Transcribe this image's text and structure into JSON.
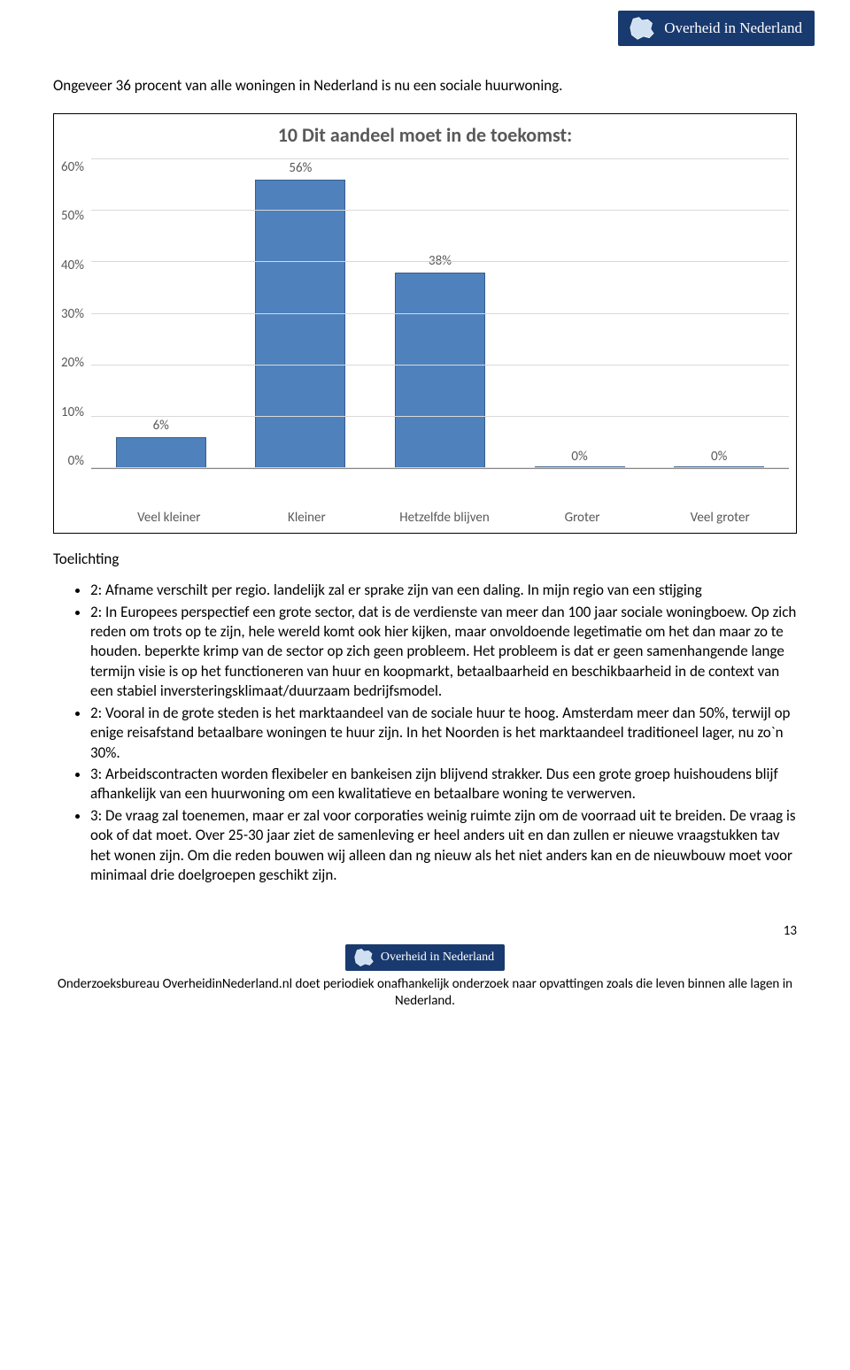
{
  "banner_text": "Overheid in Nederland",
  "intro_text": "Ongeveer 36 procent van alle woningen in Nederland is nu een sociale huurwoning.",
  "chart": {
    "title": "10 Dit aandeel moet in de toekomst:",
    "bar_color": "#4f81bd",
    "bar_border": "#385d8a",
    "grid_color": "#d9d9d9",
    "title_color": "#595959",
    "label_color": "#595959",
    "ymax": 60,
    "ystep": 10,
    "yticks": [
      "60%",
      "50%",
      "40%",
      "30%",
      "20%",
      "10%",
      "0%"
    ],
    "categories": [
      "Veel kleiner",
      "Kleiner",
      "Hetzelfde blijven",
      "Groter",
      "Veel groter"
    ],
    "values": [
      6,
      56,
      38,
      0,
      0
    ],
    "value_labels": [
      "6%",
      "56%",
      "38%",
      "0%",
      "0%"
    ]
  },
  "toelichting_heading": "Toelichting",
  "bullets": [
    "2: Afname verschilt per regio. landelijk zal er sprake zijn van een daling. In mijn regio van een stijging",
    "2: In Europees perspectief een grote sector, dat is de verdienste van meer dan 100 jaar sociale woningboew. Op zich reden om trots op te zijn, hele wereld komt ook hier kijken, maar onvoldoende legetimatie om het dan maar zo te houden. beperkte krimp van de sector op zich geen probleem. Het probleem is dat er geen samenhangende lange termijn visie is op het functioneren van huur en koopmarkt, betaalbaarheid en beschikbaarheid in de context van een stabiel inversteringsklimaat/duurzaam bedrijfsmodel.",
    "2: Vooral in de grote steden is het marktaandeel van de sociale huur te hoog. Amsterdam meer dan 50%, terwijl op enige reisafstand betaalbare woningen te huur zijn. In het Noorden is het marktaandeel traditioneel lager, nu zo`n 30%.",
    "3: Arbeidscontracten worden flexibeler en bankeisen zijn blijvend strakker. Dus een grote groep huishoudens blijf afhankelijk van een huurwoning om een kwalitatieve en betaalbare woning te verwerven.",
    "3: De vraag zal toenemen, maar er zal voor corporaties weinig ruimte zijn om de voorraad uit te breiden. De vraag is ook of dat moet. Over 25-30 jaar ziet de samenleving er heel anders uit en dan zullen er nieuwe vraagstukken tav het wonen zijn. Om die reden bouwen wij alleen dan ng nieuw als het niet anders kan en de nieuwbouw moet voor minimaal drie doelgroepen geschikt zijn."
  ],
  "page_number": "13",
  "footer_text": "Onderzoeksbureau OverheidinNederland.nl doet periodiek onafhankelijk onderzoek naar opvattingen zoals die leven binnen alle lagen in Nederland."
}
